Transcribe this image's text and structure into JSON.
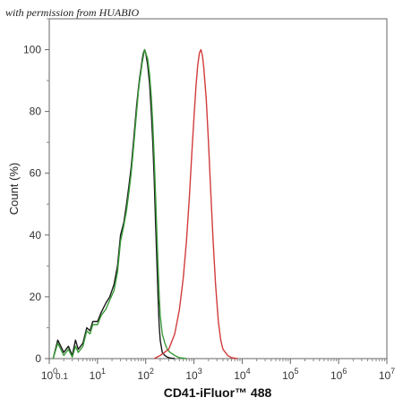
{
  "watermark": "with permission from HUABIO",
  "chart_data": {
    "type": "line",
    "xlabel": "CD41-iFluor™ 488",
    "ylabel": "Count  (%)",
    "x_scale": "log",
    "xlim": [
      1,
      10000000
    ],
    "ylim": [
      0,
      110
    ],
    "y_ticks": [
      0,
      20,
      40,
      60,
      80,
      100
    ],
    "y_tick_labels": [
      "0",
      "20",
      "40",
      "60",
      "80",
      "100"
    ],
    "x_tick_labels": [
      {
        "base": "10",
        "exp": "0"
      },
      {
        "base": "10",
        "exp": "1"
      },
      {
        "base": "10",
        "exp": "2"
      },
      {
        "base": "10",
        "exp": "3"
      },
      {
        "base": "10",
        "exp": "4"
      },
      {
        "base": "10",
        "exp": "5"
      },
      {
        "base": "10",
        "exp": "6"
      },
      {
        "base": "10",
        "exp": "7"
      }
    ],
    "minor_tick_label": "0.1",
    "grid": false,
    "series": [
      {
        "color": "#1a1a1a",
        "x": [
          1.2,
          1.5,
          2,
          2.5,
          3,
          3.5,
          4,
          5,
          6,
          7,
          8,
          10,
          12,
          15,
          18,
          22,
          26,
          30,
          35,
          40,
          45,
          50,
          55,
          60,
          65,
          70,
          75,
          80,
          85,
          90,
          95,
          100,
          110,
          120,
          130,
          140,
          150,
          160,
          170,
          180,
          190,
          200,
          220,
          250,
          280,
          320,
          400
        ],
        "y": [
          0,
          6,
          2,
          4,
          1,
          6,
          3,
          5,
          10,
          9,
          12,
          12,
          15,
          18,
          20,
          24,
          30,
          40,
          44,
          50,
          56,
          62,
          69,
          76,
          82,
          87,
          91,
          94,
          97,
          99,
          100,
          99,
          95,
          89,
          80,
          70,
          58,
          44,
          32,
          20,
          11,
          6,
          2,
          1,
          0.5,
          0.2,
          0
        ]
      },
      {
        "color": "#3a9a3a",
        "x": [
          1.2,
          1.5,
          2,
          2.5,
          3,
          3.5,
          4,
          5,
          6,
          7,
          8,
          10,
          12,
          15,
          18,
          22,
          26,
          30,
          35,
          40,
          45,
          50,
          55,
          60,
          65,
          70,
          75,
          80,
          85,
          90,
          95,
          100,
          110,
          120,
          130,
          140,
          150,
          160,
          170,
          180,
          190,
          200,
          220,
          250,
          280,
          320,
          400,
          500,
          700
        ],
        "y": [
          0,
          5,
          1,
          3,
          0.5,
          4,
          2,
          4,
          9,
          8,
          11,
          11,
          14,
          16,
          19,
          22,
          28,
          38,
          43,
          48,
          54,
          60,
          67,
          74,
          80,
          86,
          90,
          93,
          96,
          98,
          100,
          99,
          97,
          92,
          85,
          76,
          65,
          53,
          41,
          30,
          21,
          14,
          8,
          5,
          3,
          2,
          1,
          0.3,
          0
        ]
      },
      {
        "color": "#d23b3b",
        "x": [
          150,
          200,
          300,
          400,
          500,
          600,
          700,
          800,
          900,
          1000,
          1100,
          1200,
          1300,
          1400,
          1500,
          1600,
          1800,
          2000,
          2200,
          2500,
          2800,
          3200,
          3600,
          4000,
          5000,
          6000,
          8000
        ],
        "y": [
          0,
          1,
          3,
          8,
          16,
          26,
          38,
          52,
          66,
          78,
          88,
          95,
          99,
          100,
          98,
          94,
          84,
          70,
          56,
          38,
          24,
          12,
          6,
          3,
          1,
          0.3,
          0
        ]
      }
    ]
  }
}
